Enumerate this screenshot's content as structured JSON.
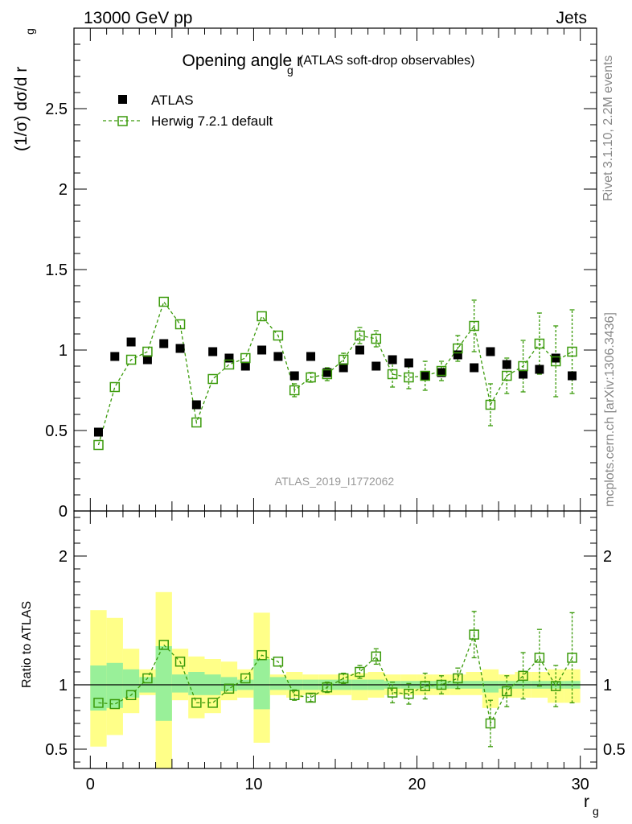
{
  "header": {
    "energy_label": "13000 GeV pp",
    "process_label": "Jets"
  },
  "side_labels": {
    "rivet": "Rivet 3.1.10,  2.2M events",
    "mcplots": "mcplots.cern.ch [arXiv:1306.3436]"
  },
  "watermark": "ATLAS_2019_I1772062",
  "colors": {
    "mc": "#3a9a0a",
    "band_inner": "#99f099",
    "band_outer": "#ffff88",
    "data": "#000000"
  },
  "chart_data": [
    {
      "type": "scatter",
      "title": "Opening angle r",
      "title_sub": "g",
      "title_suffix": "(ATLAS soft-drop observables)",
      "ylabel": "(1/σ) dσ/d r",
      "ylabel_sub": "g",
      "xlim": [
        -1,
        31
      ],
      "ylim": [
        0,
        3
      ],
      "yticks": [
        0,
        0.5,
        1,
        1.5,
        2,
        2.5
      ],
      "ytick_labels": [
        "0",
        "0.5",
        "1",
        "1.5",
        "2",
        "2.5"
      ],
      "legend_position": "top-left",
      "x": [
        0.5,
        1.5,
        2.5,
        3.5,
        4.5,
        5.5,
        6.5,
        7.5,
        8.5,
        9.5,
        10.5,
        11.5,
        12.5,
        13.5,
        14.5,
        15.5,
        16.5,
        17.5,
        18.5,
        19.5,
        20.5,
        21.5,
        22.5,
        23.5,
        24.5,
        25.5,
        26.5,
        27.5,
        28.5,
        29.5
      ],
      "series": [
        {
          "name": "ATLAS",
          "values": [
            0.49,
            0.96,
            1.05,
            0.94,
            1.04,
            1.01,
            0.66,
            0.99,
            0.95,
            0.9,
            1.0,
            0.96,
            0.84,
            0.96,
            0.86,
            0.89,
            1.0,
            0.9,
            0.94,
            0.92,
            0.84,
            0.86,
            0.97,
            0.89,
            0.99,
            0.91,
            0.85,
            0.88,
            0.95,
            0.84
          ]
        },
        {
          "name": "Herwig 7.2.1 default",
          "values": [
            0.41,
            0.77,
            0.94,
            0.99,
            1.3,
            1.16,
            0.55,
            0.82,
            0.91,
            0.95,
            1.21,
            1.09,
            0.75,
            0.83,
            0.85,
            0.94,
            1.09,
            1.07,
            0.85,
            0.83,
            0.84,
            0.87,
            1.01,
            1.15,
            0.66,
            0.84,
            0.9,
            1.04,
            0.93,
            0.99
          ],
          "err": [
            0.01,
            0.01,
            0.01,
            0.01,
            0.01,
            0.01,
            0.01,
            0.01,
            0.01,
            0.01,
            0.01,
            0.01,
            0.04,
            0.03,
            0.04,
            0.04,
            0.05,
            0.05,
            0.08,
            0.07,
            0.09,
            0.06,
            0.08,
            0.16,
            0.13,
            0.11,
            0.16,
            0.19,
            0.22,
            0.26
          ]
        }
      ]
    },
    {
      "type": "scatter",
      "ylabel": "Ratio to ATLAS",
      "xlabel": "r",
      "xlabel_sub": "g",
      "xlim": [
        -1,
        31
      ],
      "ylim": [
        0.35,
        2.35
      ],
      "yticks": [
        0.5,
        1,
        2
      ],
      "ytick_labels": [
        "0.5",
        "1",
        "2"
      ],
      "xticks": [
        0,
        10,
        20,
        30
      ],
      "xtick_labels": [
        "0",
        "10",
        "20",
        "30"
      ],
      "reference_line": 1,
      "band_inner": [
        [
          0.8,
          1.15
        ],
        [
          0.82,
          1.17
        ],
        [
          0.9,
          1.12
        ],
        [
          0.94,
          1.06
        ],
        [
          0.72,
          1.3
        ],
        [
          0.94,
          1.08
        ],
        [
          0.92,
          1.1
        ],
        [
          0.92,
          1.08
        ],
        [
          0.95,
          1.06
        ],
        [
          0.96,
          1.04
        ],
        [
          0.81,
          1.2
        ],
        [
          0.96,
          1.06
        ],
        [
          0.96,
          1.04
        ],
        [
          0.96,
          1.04
        ],
        [
          0.96,
          1.04
        ],
        [
          0.96,
          1.04
        ],
        [
          0.96,
          1.04
        ],
        [
          0.96,
          1.04
        ],
        [
          0.97,
          1.03
        ],
        [
          0.97,
          1.03
        ],
        [
          0.97,
          1.03
        ],
        [
          0.97,
          1.03
        ],
        [
          0.97,
          1.03
        ],
        [
          0.97,
          1.03
        ],
        [
          0.94,
          1.03
        ],
        [
          0.97,
          1.03
        ],
        [
          0.97,
          1.03
        ],
        [
          0.97,
          1.03
        ],
        [
          0.97,
          1.03
        ],
        [
          0.97,
          1.03
        ]
      ],
      "band_outer": [
        [
          0.52,
          1.58
        ],
        [
          0.61,
          1.52
        ],
        [
          0.78,
          1.28
        ],
        [
          0.92,
          1.12
        ],
        [
          0.35,
          1.72
        ],
        [
          0.88,
          1.28
        ],
        [
          0.74,
          1.22
        ],
        [
          0.78,
          1.2
        ],
        [
          0.88,
          1.18
        ],
        [
          0.9,
          1.12
        ],
        [
          0.55,
          1.56
        ],
        [
          0.92,
          1.08
        ],
        [
          0.9,
          1.1
        ],
        [
          0.92,
          1.08
        ],
        [
          0.92,
          1.08
        ],
        [
          0.92,
          1.08
        ],
        [
          0.88,
          1.09
        ],
        [
          0.9,
          1.1
        ],
        [
          0.92,
          1.08
        ],
        [
          0.92,
          1.08
        ],
        [
          0.92,
          1.08
        ],
        [
          0.92,
          1.08
        ],
        [
          0.92,
          1.08
        ],
        [
          0.92,
          1.1
        ],
        [
          0.82,
          1.12
        ],
        [
          0.9,
          1.08
        ],
        [
          0.9,
          1.1
        ],
        [
          0.9,
          1.1
        ],
        [
          0.86,
          1.12
        ],
        [
          0.86,
          1.12
        ]
      ],
      "series": [
        {
          "name": "Herwig 7.2.1 default",
          "values": [
            0.86,
            0.85,
            0.92,
            1.05,
            1.31,
            1.18,
            0.86,
            0.86,
            0.97,
            1.05,
            1.23,
            1.18,
            0.92,
            0.9,
            0.98,
            1.05,
            1.1,
            1.22,
            0.94,
            0.93,
            0.99,
            1.0,
            1.05,
            1.39,
            0.7,
            0.95,
            1.07,
            1.21,
            0.99,
            1.21
          ],
          "err": [
            0.01,
            0.01,
            0.01,
            0.01,
            0.01,
            0.01,
            0.01,
            0.01,
            0.01,
            0.01,
            0.01,
            0.01,
            0.04,
            0.03,
            0.04,
            0.04,
            0.05,
            0.06,
            0.08,
            0.08,
            0.1,
            0.07,
            0.08,
            0.18,
            0.18,
            0.12,
            0.18,
            0.22,
            0.16,
            0.35
          ]
        }
      ]
    }
  ]
}
